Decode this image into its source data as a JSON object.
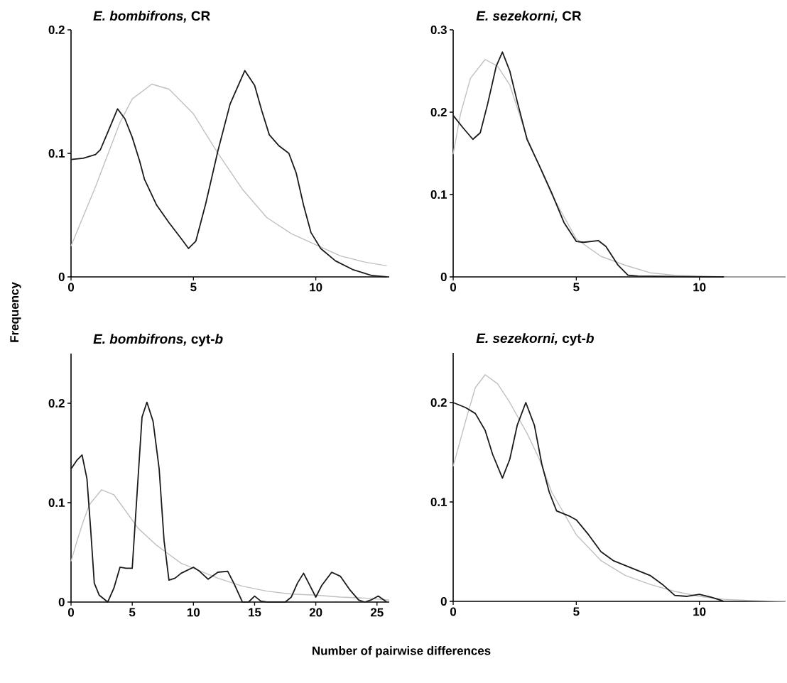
{
  "chart_data": [
    {
      "type": "line",
      "title": "*E. bombifrons,* CR",
      "ylabel": "Frequency",
      "xlim": [
        0,
        13
      ],
      "xticks": [
        0,
        5,
        10
      ],
      "ylim": [
        0,
        0.2
      ],
      "yticks": [
        0,
        0.1,
        0.2
      ],
      "series": [
        {
          "color": "#c0c0c0",
          "x": [
            0,
            1,
            2,
            2.5,
            3.3,
            4,
            5,
            6,
            7,
            8,
            9,
            10,
            11,
            12,
            12.9
          ],
          "values": [
            0.025,
            0.073,
            0.125,
            0.144,
            0.156,
            0.152,
            0.132,
            0.1,
            0.071,
            0.048,
            0.035,
            0.026,
            0.017,
            0.012,
            0.009
          ]
        },
        {
          "color": "#1a1a1a",
          "x": [
            0,
            0.5,
            1,
            1.2,
            1.5,
            1.9,
            2.2,
            2.5,
            2.8,
            3,
            3.5,
            4,
            4.5,
            4.8,
            5.1,
            5.5,
            6,
            6.5,
            7.1,
            7.5,
            7.8,
            8.1,
            8.5,
            8.9,
            9.2,
            9.5,
            9.8,
            10.2,
            10.8,
            11.5,
            12.3,
            12.9
          ],
          "values": [
            0.095,
            0.096,
            0.099,
            0.103,
            0.117,
            0.136,
            0.128,
            0.113,
            0.094,
            0.079,
            0.058,
            0.044,
            0.031,
            0.023,
            0.029,
            0.059,
            0.102,
            0.14,
            0.167,
            0.155,
            0.134,
            0.115,
            0.106,
            0.1,
            0.084,
            0.058,
            0.036,
            0.023,
            0.013,
            0.006,
            0.001,
            0
          ]
        }
      ]
    },
    {
      "type": "line",
      "title": "*E. sezekorni,* CR",
      "xlim": [
        0,
        13.5
      ],
      "xticks": [
        0,
        5,
        10
      ],
      "ylim": [
        0,
        0.3
      ],
      "yticks": [
        0,
        0.1,
        0.2,
        0.3
      ],
      "series": [
        {
          "color": "#c0c0c0",
          "x": [
            0,
            0.3,
            0.7,
            1.3,
            1.8,
            2.3,
            3,
            4,
            5,
            6,
            7,
            8,
            9,
            10,
            11,
            13.5
          ],
          "values": [
            0.149,
            0.198,
            0.241,
            0.264,
            0.256,
            0.233,
            0.169,
            0.1,
            0.046,
            0.025,
            0.014,
            0.005,
            0.002,
            0.001,
            0,
            0
          ]
        },
        {
          "color": "#1a1a1a",
          "x": [
            0,
            0.4,
            0.8,
            1.1,
            1.4,
            1.75,
            2,
            2.3,
            2.6,
            3,
            3.5,
            4,
            4.5,
            5,
            5.3,
            5.9,
            6.2,
            6.7,
            7.1,
            7.5,
            10,
            11
          ],
          "values": [
            0.196,
            0.181,
            0.167,
            0.175,
            0.21,
            0.256,
            0.273,
            0.25,
            0.213,
            0.167,
            0.135,
            0.102,
            0.066,
            0.043,
            0.042,
            0.044,
            0.037,
            0.014,
            0.002,
            0.001,
            0,
            0
          ]
        }
      ]
    },
    {
      "type": "line",
      "title": "*E. bombifrons,* cyt-*b*",
      "xlabel": "Number of pairwise differences",
      "xlim": [
        0,
        26
      ],
      "xticks": [
        0,
        5,
        10,
        15,
        20,
        25
      ],
      "ylim": [
        0,
        0.25
      ],
      "yticks": [
        0,
        0.1,
        0.2
      ],
      "series": [
        {
          "color": "#c0c0c0",
          "x": [
            0,
            0.5,
            1,
            1.5,
            2.5,
            3.5,
            4.5,
            5.5,
            7,
            8,
            9,
            10,
            12,
            14,
            16,
            18,
            20,
            22,
            24,
            26
          ],
          "values": [
            0.041,
            0.062,
            0.081,
            0.098,
            0.113,
            0.108,
            0.091,
            0.074,
            0.057,
            0.048,
            0.039,
            0.034,
            0.024,
            0.016,
            0.011,
            0.008,
            0.007,
            0.005,
            0.004,
            0.002
          ]
        },
        {
          "color": "#1a1a1a",
          "x": [
            0,
            0.5,
            0.9,
            1.3,
            1.6,
            1.9,
            2.3,
            3,
            3.5,
            4,
            4.5,
            5,
            5.4,
            5.8,
            6.2,
            6.7,
            7.2,
            7.6,
            8,
            8.5,
            9,
            10,
            10.5,
            11.2,
            12,
            12.8,
            13.3,
            14,
            14.5,
            15,
            15.5,
            16,
            17.5,
            18,
            18.5,
            19,
            19.5,
            20,
            20.5,
            21.3,
            22,
            22.8,
            23.5,
            24,
            24.5,
            25.1,
            25.8
          ],
          "values": [
            0.134,
            0.143,
            0.148,
            0.124,
            0.074,
            0.019,
            0.007,
            0,
            0.014,
            0.035,
            0.034,
            0.034,
            0.11,
            0.186,
            0.201,
            0.182,
            0.134,
            0.062,
            0.022,
            0.024,
            0.029,
            0.035,
            0.031,
            0.023,
            0.03,
            0.031,
            0.019,
            0,
            0,
            0.006,
            0.001,
            0,
            0,
            0.005,
            0.019,
            0.029,
            0.017,
            0.005,
            0.017,
            0.03,
            0.026,
            0.012,
            0.002,
            0,
            0.002,
            0.006,
            0
          ]
        }
      ]
    },
    {
      "type": "line",
      "title": "*E. sezekorni,* cyt-*b*",
      "xlim": [
        0,
        13.5
      ],
      "xticks": [
        0,
        5,
        10
      ],
      "ylim": [
        0,
        0.25
      ],
      "yticks": [
        0,
        0.1,
        0.2
      ],
      "series": [
        {
          "color": "#c0c0c0",
          "x": [
            0,
            0.5,
            0.9,
            1.3,
            1.8,
            2.3,
            3,
            3.5,
            4,
            5,
            6,
            7,
            8,
            9,
            10,
            11,
            12,
            13.5
          ],
          "values": [
            0.136,
            0.181,
            0.215,
            0.228,
            0.219,
            0.2,
            0.169,
            0.143,
            0.11,
            0.067,
            0.041,
            0.026,
            0.017,
            0.01,
            0.005,
            0.002,
            0.001,
            0
          ]
        },
        {
          "color": "#1a1a1a",
          "x": [
            0,
            0.5,
            0.9,
            1.3,
            1.6,
            2,
            2.3,
            2.6,
            2.95,
            3.3,
            3.6,
            3.9,
            4.2,
            4.7,
            5,
            5.5,
            6,
            6.5,
            7,
            7.5,
            8,
            8.5,
            9,
            9.5,
            10,
            10.5,
            11
          ],
          "values": [
            0.2,
            0.195,
            0.189,
            0.172,
            0.148,
            0.124,
            0.143,
            0.177,
            0.2,
            0.177,
            0.138,
            0.11,
            0.091,
            0.086,
            0.082,
            0.067,
            0.05,
            0.041,
            0.036,
            0.031,
            0.026,
            0.017,
            0.006,
            0.005,
            0.007,
            0.004,
            0
          ]
        }
      ]
    }
  ]
}
